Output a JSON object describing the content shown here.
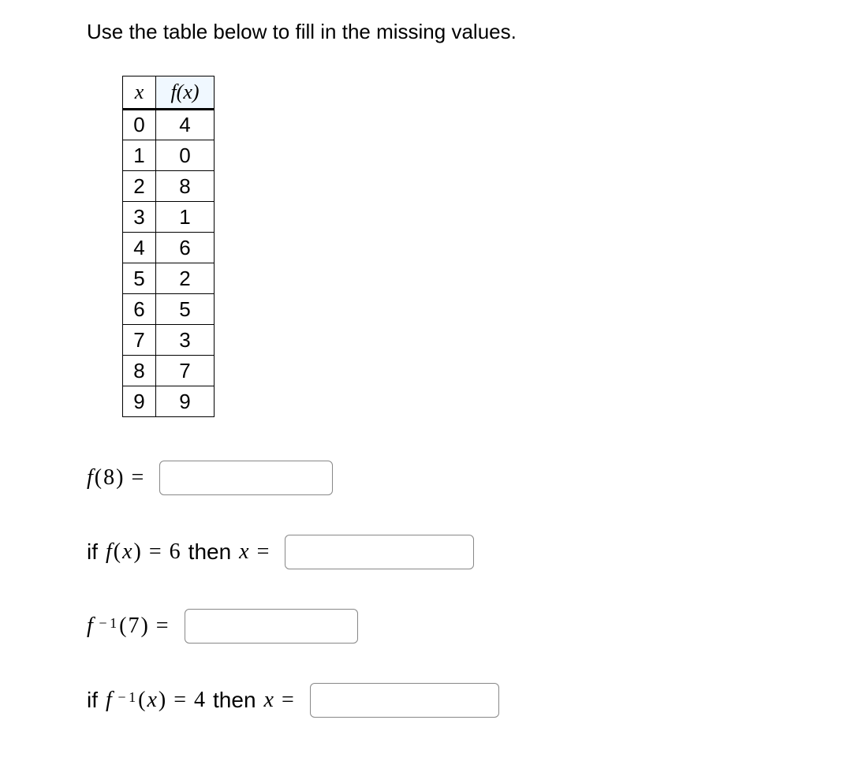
{
  "instruction": "Use the table below to fill in the missing values.",
  "table": {
    "header_x": "x",
    "header_fx": "f(x)",
    "rows": [
      {
        "x": "0",
        "fx": "4"
      },
      {
        "x": "1",
        "fx": "0"
      },
      {
        "x": "2",
        "fx": "8"
      },
      {
        "x": "3",
        "fx": "1"
      },
      {
        "x": "4",
        "fx": "6"
      },
      {
        "x": "5",
        "fx": "2"
      },
      {
        "x": "6",
        "fx": "5"
      },
      {
        "x": "7",
        "fx": "3"
      },
      {
        "x": "8",
        "fx": "7"
      },
      {
        "x": "9",
        "fx": "9"
      }
    ]
  },
  "q1": {
    "label_pre": "f(8) = "
  },
  "q2": {
    "label_pre": "if ",
    "func": "f(x)",
    "eq": " = ",
    "val": "6",
    "then": " then ",
    "var": "x",
    "eq2": " = "
  },
  "q3": {
    "func": "f",
    "sup": " − 1",
    "arg": "(7)",
    "eq": " = "
  },
  "q4": {
    "label_pre": "if ",
    "func": "f",
    "sup": " − 1",
    "arg": "(x)",
    "eq": " = ",
    "val": "4",
    "then": " then ",
    "var": "x",
    "eq2": " = "
  }
}
